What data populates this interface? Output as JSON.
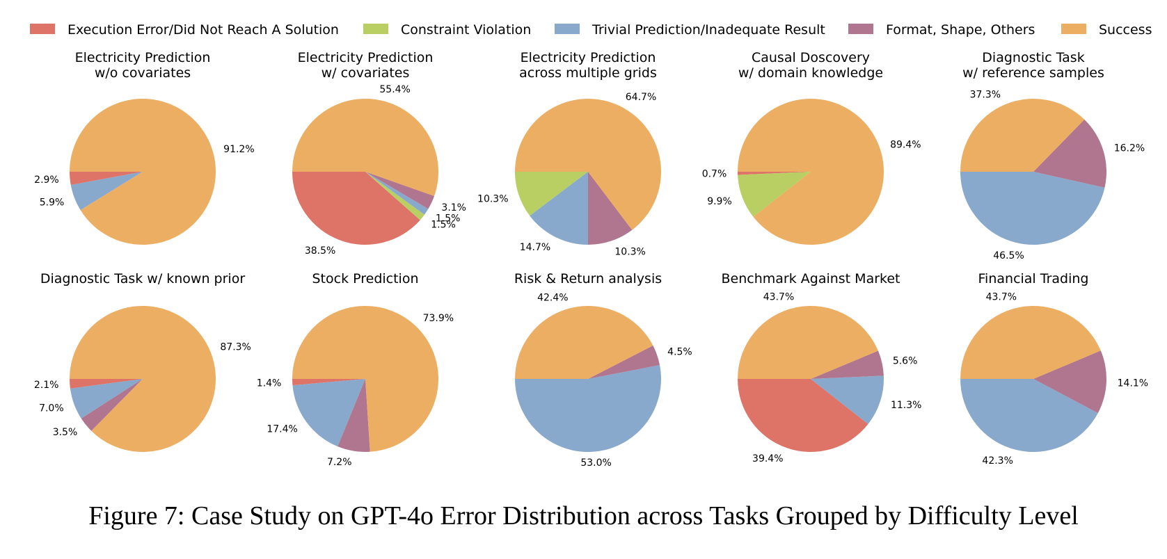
{
  "legend": [
    {
      "label": "Execution Error/Did Not Reach A Solution",
      "color": "#DE7468"
    },
    {
      "label": "Constraint Violation",
      "color": "#B9CF63"
    },
    {
      "label": "Trivial Prediction/Inadequate Result",
      "color": "#88A9CC"
    },
    {
      "label": "Format, Shape, Others",
      "color": "#B0768F"
    },
    {
      "label": "Success",
      "color": "#ECAE62"
    }
  ],
  "chart_data": [
    {
      "type": "pie",
      "title": [
        "Electricity Prediction",
        "w/o covariates"
      ],
      "values": [
        2.9,
        0,
        5.9,
        0,
        91.2
      ],
      "labels": [
        "2.9%",
        "",
        "5.9%",
        "",
        "91.2%"
      ]
    },
    {
      "type": "pie",
      "title": [
        "Electricity Prediction",
        "w/ covariates"
      ],
      "values": [
        38.5,
        1.5,
        1.5,
        3.1,
        55.4
      ],
      "labels": [
        "38.5%",
        "1.5%",
        "1.5%",
        "3.1%",
        "55.4%"
      ]
    },
    {
      "type": "pie",
      "title": [
        "Electricity Prediction",
        "across multiple grids"
      ],
      "values": [
        0,
        10.3,
        14.7,
        10.3,
        64.7
      ],
      "labels": [
        "",
        "10.3%",
        "14.7%",
        "10.3%",
        "64.7%"
      ]
    },
    {
      "type": "pie",
      "title": [
        "Causal Doscovery",
        "w/ domain knowledge"
      ],
      "values": [
        0.7,
        9.9,
        0,
        0,
        89.4
      ],
      "labels": [
        "0.7%",
        "9.9%",
        "",
        "",
        "89.4%"
      ]
    },
    {
      "type": "pie",
      "title": [
        "Diagnostic Task",
        "w/ reference samples"
      ],
      "values": [
        0,
        0,
        46.5,
        16.2,
        37.3
      ],
      "labels": [
        "",
        "",
        "46.5%",
        "16.2%",
        "37.3%"
      ]
    },
    {
      "type": "pie",
      "title": [
        "Diagnostic Task w/ known prior"
      ],
      "values": [
        2.1,
        0,
        7.0,
        3.5,
        87.3
      ],
      "labels": [
        "2.1%",
        "",
        "7.0%",
        "3.5%",
        "87.3%"
      ]
    },
    {
      "type": "pie",
      "title": [
        "Stock Prediction"
      ],
      "values": [
        1.4,
        0,
        17.4,
        7.2,
        73.9
      ],
      "labels": [
        "1.4%",
        "",
        "17.4%",
        "7.2%",
        "73.9%"
      ]
    },
    {
      "type": "pie",
      "title": [
        "Risk & Return analysis"
      ],
      "values": [
        0,
        0,
        53.0,
        4.5,
        42.4
      ],
      "labels": [
        "",
        "",
        "53.0%",
        "4.5%",
        "42.4%"
      ]
    },
    {
      "type": "pie",
      "title": [
        "Benchmark Against Market"
      ],
      "values": [
        39.4,
        0,
        11.3,
        5.6,
        43.7
      ],
      "labels": [
        "39.4%",
        "",
        "11.3%",
        "5.6%",
        "43.7%"
      ]
    },
    {
      "type": "pie",
      "title": [
        "Financial Trading"
      ],
      "values": [
        0,
        0,
        42.3,
        14.1,
        43.7
      ],
      "labels": [
        "",
        "",
        "42.3%",
        "14.1%",
        "43.7%"
      ]
    }
  ],
  "caption": "Figure 7: Case Study on GPT-4o Error Distribution across Tasks Grouped by Difficulty Level"
}
